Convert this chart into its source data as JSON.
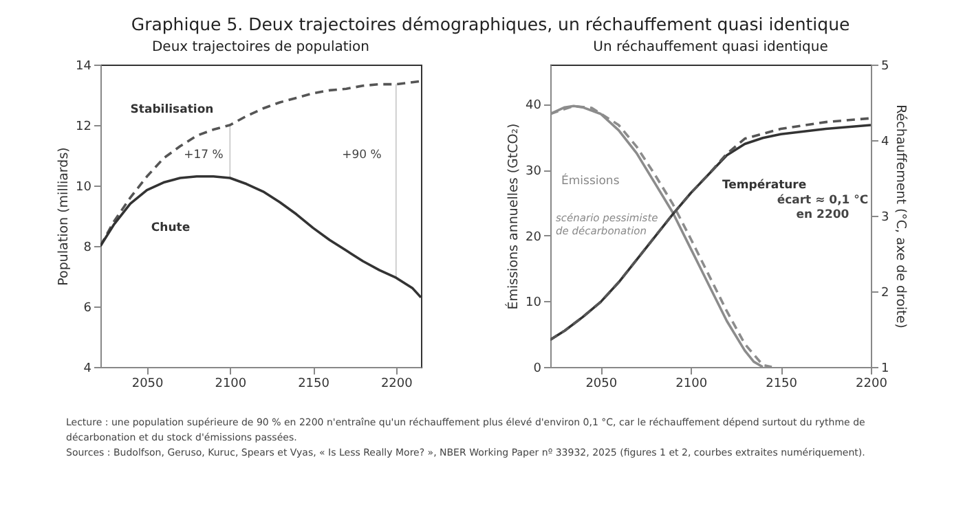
{
  "chart_data": [
    {
      "type": "line",
      "title": "Deux trajectoires de population",
      "ylabel": "Population (milliards)",
      "xlim": [
        2022,
        2215
      ],
      "xticks": [
        2050,
        2100,
        2150,
        2200
      ],
      "ylim": [
        4,
        14
      ],
      "yticks": [
        4,
        6,
        8,
        10,
        12,
        14
      ],
      "grid": false,
      "series": [
        {
          "color": "#cfcfcf",
          "line_style": "solid",
          "x": [
            2100,
            2100
          ],
          "values": [
            10.25,
            12.0
          ]
        },
        {
          "color": "#cfcfcf",
          "line_style": "solid",
          "x": [
            2200,
            2200
          ],
          "values": [
            6.95,
            13.35
          ]
        },
        {
          "color": "#555555",
          "line_style": "dashed",
          "x": [
            2022,
            2030,
            2040,
            2050,
            2060,
            2070,
            2080,
            2090,
            2100,
            2110,
            2120,
            2130,
            2140,
            2150,
            2160,
            2170,
            2180,
            2190,
            2200,
            2215
          ],
          "values": [
            8.0,
            8.8,
            9.6,
            10.3,
            10.9,
            11.3,
            11.65,
            11.85,
            12.0,
            12.3,
            12.55,
            12.75,
            12.9,
            13.05,
            13.15,
            13.2,
            13.3,
            13.35,
            13.35,
            13.45
          ]
        },
        {
          "color": "#333333",
          "line_style": "solid",
          "x": [
            2022,
            2030,
            2040,
            2050,
            2060,
            2070,
            2080,
            2090,
            2100,
            2110,
            2120,
            2130,
            2140,
            2150,
            2160,
            2170,
            2180,
            2190,
            2200,
            2210,
            2215
          ],
          "values": [
            8.0,
            8.7,
            9.4,
            9.85,
            10.1,
            10.25,
            10.3,
            10.3,
            10.25,
            10.05,
            9.8,
            9.45,
            9.05,
            8.6,
            8.2,
            7.85,
            7.5,
            7.2,
            6.95,
            6.6,
            6.3
          ]
        }
      ],
      "annotations": [
        "Stabilisation",
        "Chute",
        "+17 %",
        "+90 %"
      ]
    },
    {
      "type": "line",
      "title": "Un réchauffement quasi identique",
      "ylabel": "Émissions annuelles (GtCO₂)",
      "y2label": "Réchauffement (°C, axe de droite)",
      "xlim": [
        2022,
        2200
      ],
      "xticks": [
        2050,
        2100,
        2150,
        2200
      ],
      "ylim": [
        0,
        46
      ],
      "yticks": [
        0,
        10,
        20,
        30,
        40
      ],
      "y2lim": [
        1,
        5
      ],
      "y2ticks": [
        1,
        2,
        3,
        4,
        5
      ],
      "grid": false,
      "series": [
        {
          "color": "#8c8c8c",
          "line_style": "solid",
          "x": [
            2022,
            2030,
            2035,
            2040,
            2050,
            2060,
            2070,
            2080,
            2090,
            2100,
            2110,
            2120,
            2130,
            2135,
            2140
          ],
          "values": [
            38.5,
            39.5,
            39.7,
            39.5,
            38.5,
            36,
            32.5,
            28,
            23.5,
            18,
            12.5,
            7,
            2.5,
            0.8,
            0
          ]
        },
        {
          "color": "#8c8c8c",
          "line_style": "dashed",
          "x": [
            2022,
            2035,
            2045,
            2060,
            2070,
            2080,
            2090,
            2100,
            2110,
            2120,
            2130,
            2140,
            2145
          ],
          "values": [
            38.5,
            39.7,
            39.4,
            36.8,
            33.5,
            29.3,
            24.8,
            19.5,
            14,
            8.5,
            3.5,
            0.3,
            0
          ]
        },
        {
          "color": "#333333",
          "line_style": "solid",
          "axis": "y2",
          "x": [
            2022,
            2030,
            2040,
            2050,
            2060,
            2070,
            2080,
            2090,
            2100,
            2110,
            2120,
            2130,
            2140,
            2150,
            2175,
            2200
          ],
          "values": [
            1.36,
            1.48,
            1.66,
            1.86,
            2.12,
            2.42,
            2.72,
            3.02,
            3.3,
            3.55,
            3.8,
            3.95,
            4.03,
            4.08,
            4.15,
            4.2
          ]
        },
        {
          "color": "#555555",
          "line_style": "dashed",
          "axis": "y2",
          "x": [
            2022,
            2030,
            2040,
            2050,
            2060,
            2070,
            2080,
            2090,
            2100,
            2110,
            2120,
            2130,
            2150,
            2175,
            2200
          ],
          "values": [
            1.36,
            1.48,
            1.66,
            1.86,
            2.12,
            2.42,
            2.72,
            3.02,
            3.3,
            3.55,
            3.82,
            4.02,
            4.15,
            4.24,
            4.29
          ]
        }
      ],
      "annotations": [
        "Émissions",
        "scénario pessimiste\nde décarbonation",
        "Température",
        "écart ≈ 0,1 °C\nen 2200"
      ]
    },
    {
      "type": "other",
      "title": "Graphique 5. Deux trajectoires démographiques, un réchauffement quasi identique",
      "annotations": [
        "Lecture : une population supérieure de 90 % en 2200 n'entraîne qu'un réchauffement plus élevé d'environ 0,1 °C, car le réchauffement dépend surtout du rythme de décarbonation et du stock d'émissions passées.",
        "Sources : Budolfson, Geruso, Kuruc, Spears et Vyas, « Is Less Really More? », NBER Working Paper nº 33932, 2025 (figures 1 et 2, courbes extraites numériquement)."
      ]
    }
  ]
}
